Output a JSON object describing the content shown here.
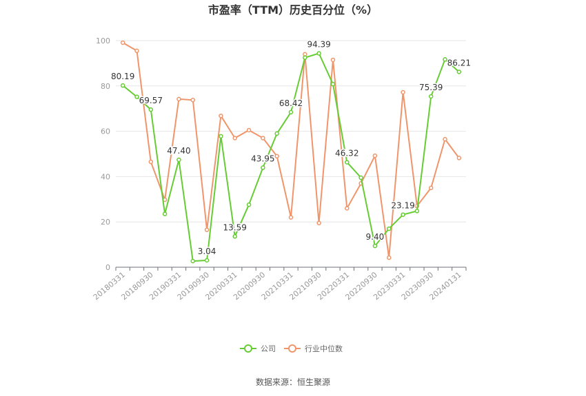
{
  "chart_data": {
    "type": "line",
    "title": "市盈率（TTM）历史百分位（%）",
    "source": "数据来源：恒生聚源",
    "ylim": [
      0,
      100
    ],
    "yticks": [
      "0",
      "20",
      "40",
      "60",
      "80",
      "100"
    ],
    "x": [
      "20180331",
      "20180630",
      "20180930",
      "20181231",
      "20190331",
      "20190630",
      "20190930",
      "20191231",
      "20200331",
      "20200630",
      "20200930",
      "20201231",
      "20210331",
      "20210630",
      "20210930",
      "20211231",
      "20220331",
      "20220630",
      "20220930",
      "20221231",
      "20230331",
      "20230630",
      "20230930",
      "20231231",
      "20240131"
    ],
    "xtick_labels": [
      "20180331",
      "20180930",
      "20190331",
      "20190930",
      "20200331",
      "20200930",
      "20210331",
      "20210930",
      "20220331",
      "20220930",
      "20230331",
      "20230930",
      "20240131"
    ],
    "series": [
      {
        "name": "公司",
        "color": "#66cc33",
        "values": [
          80.19,
          75.2,
          69.57,
          23.5,
          47.4,
          2.7,
          3.04,
          57.8,
          13.59,
          27.6,
          43.95,
          59.0,
          68.42,
          92.5,
          94.39,
          80.8,
          46.32,
          39.5,
          9.4,
          17.0,
          23.19,
          24.8,
          75.39,
          91.7,
          86.21
        ]
      },
      {
        "name": "行业中位数",
        "color": "#f0956a",
        "values": [
          99.1,
          95.5,
          46.5,
          29.8,
          74.2,
          73.8,
          16.5,
          66.8,
          57.0,
          60.5,
          57.0,
          49.0,
          22.0,
          94.0,
          19.5,
          91.5,
          26.0,
          37.0,
          49.2,
          4.2,
          77.2,
          27.0,
          35.0,
          56.5,
          48.2
        ]
      }
    ],
    "data_labels": [
      {
        "index": 0,
        "text": "80.19"
      },
      {
        "index": 2,
        "text": "69.57"
      },
      {
        "index": 4,
        "text": "47.40"
      },
      {
        "index": 6,
        "text": "3.04"
      },
      {
        "index": 8,
        "text": "13.59"
      },
      {
        "index": 10,
        "text": "43.95"
      },
      {
        "index": 12,
        "text": "68.42"
      },
      {
        "index": 14,
        "text": "94.39"
      },
      {
        "index": 16,
        "text": "46.32"
      },
      {
        "index": 18,
        "text": "9.40"
      },
      {
        "index": 20,
        "text": "23.19"
      },
      {
        "index": 22,
        "text": "75.39"
      },
      {
        "index": 24,
        "text": "86.21"
      }
    ],
    "legend_position": "bottom",
    "grid": true
  }
}
